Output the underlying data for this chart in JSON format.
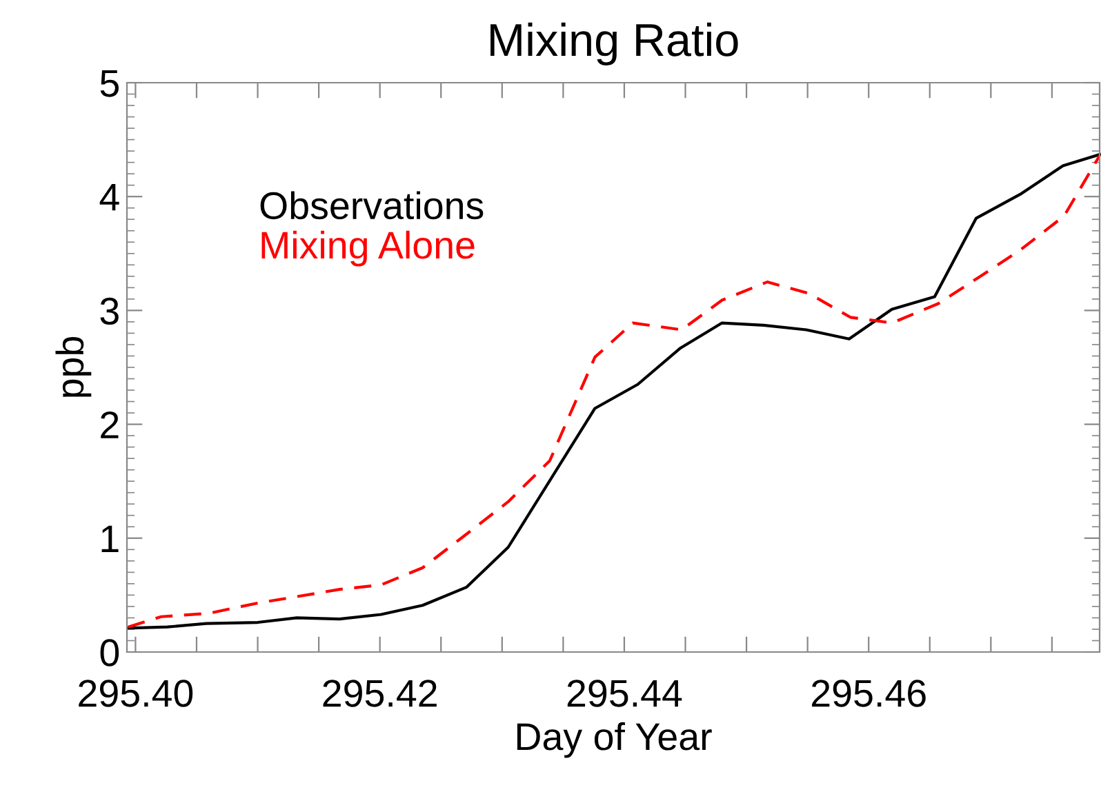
{
  "chart_data": {
    "type": "line",
    "title": "Mixing Ratio",
    "xlabel": "Day of Year",
    "ylabel": "ppb",
    "xlim": [
      295.3993,
      295.4789
    ],
    "ylim": [
      0,
      5
    ],
    "xticks": [
      {
        "value": 295.4,
        "label": "295.40"
      },
      {
        "value": 295.405,
        "label": null
      },
      {
        "value": 295.41,
        "label": null
      },
      {
        "value": 295.415,
        "label": null
      },
      {
        "value": 295.42,
        "label": "295.42"
      },
      {
        "value": 295.425,
        "label": null
      },
      {
        "value": 295.43,
        "label": null
      },
      {
        "value": 295.435,
        "label": null
      },
      {
        "value": 295.44,
        "label": "295.44"
      },
      {
        "value": 295.445,
        "label": null
      },
      {
        "value": 295.45,
        "label": null
      },
      {
        "value": 295.455,
        "label": null
      },
      {
        "value": 295.46,
        "label": "295.46"
      },
      {
        "value": 295.465,
        "label": null
      },
      {
        "value": 295.47,
        "label": null
      },
      {
        "value": 295.475,
        "label": null
      }
    ],
    "yticks": [
      0,
      1,
      2,
      3,
      4,
      5
    ],
    "grid": false,
    "legend": "top left",
    "series": [
      {
        "name": "Observations",
        "color": "#000000",
        "line_style": "solid",
        "x": [
          295.3994,
          295.4026,
          295.4058,
          295.41,
          295.4132,
          295.4167,
          295.4201,
          295.4235,
          295.4271,
          295.4305,
          295.4376,
          295.4411,
          295.4446,
          295.448,
          295.4514,
          295.4549,
          295.4584,
          295.4619,
          295.4654,
          295.4688,
          295.4724,
          295.4759,
          295.4789
        ],
        "values": [
          0.21,
          0.22,
          0.25,
          0.26,
          0.3,
          0.29,
          0.33,
          0.41,
          0.57,
          0.92,
          2.14,
          2.35,
          2.67,
          2.89,
          2.87,
          2.83,
          2.75,
          3.01,
          3.12,
          3.81,
          4.02,
          4.27,
          4.37
        ]
      },
      {
        "name": "Mixing Alone",
        "color": "#ff0000",
        "line_style": "dashed",
        "x": [
          295.3994,
          295.4021,
          295.406,
          295.41,
          295.4134,
          295.4167,
          295.4201,
          295.4235,
          295.4269,
          295.4305,
          295.4339,
          295.4376,
          295.4407,
          295.4447,
          295.448,
          295.4517,
          295.4551,
          295.4585,
          295.4619,
          295.4657,
          295.469,
          295.4724,
          295.476,
          295.4789
        ],
        "values": [
          0.22,
          0.31,
          0.34,
          0.43,
          0.49,
          0.55,
          0.59,
          0.74,
          1.02,
          1.32,
          1.68,
          2.59,
          2.89,
          2.83,
          3.09,
          3.25,
          3.15,
          2.94,
          2.89,
          3.06,
          3.29,
          3.53,
          3.83,
          4.36
        ]
      }
    ]
  }
}
